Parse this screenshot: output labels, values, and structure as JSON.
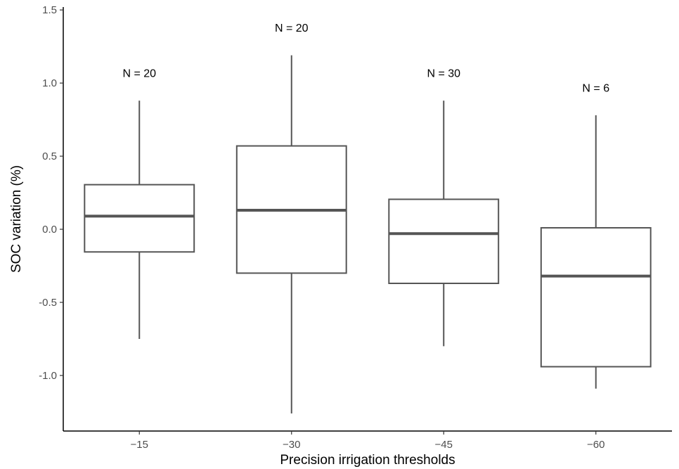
{
  "chart_data": {
    "type": "boxplot",
    "xlabel": "Precision irrigation thresholds",
    "ylabel": "SOC variation (%)",
    "ylim": [
      -1.38,
      1.52
    ],
    "yticks": [
      -1.0,
      -0.5,
      0.0,
      0.5,
      1.0,
      1.5
    ],
    "ytick_labels": [
      "-1.0",
      "-0.5",
      "0.0",
      "0.5",
      "1.0",
      "1.5"
    ],
    "categories": [
      "−15",
      "−30",
      "−45",
      "−60"
    ],
    "grid": false,
    "boxes": [
      {
        "category": "−15",
        "whisker_low": -0.75,
        "q1": -0.155,
        "median": 0.09,
        "q3": 0.305,
        "whisker_high": 0.88,
        "n_label": "N = 20",
        "n_label_y": 1.07
      },
      {
        "category": "−30",
        "whisker_low": -1.26,
        "q1": -0.3,
        "median": 0.13,
        "q3": 0.57,
        "whisker_high": 1.19,
        "n_label": "N = 20",
        "n_label_y": 1.38
      },
      {
        "category": "−45",
        "whisker_low": -0.8,
        "q1": -0.37,
        "median": -0.03,
        "q3": 0.205,
        "whisker_high": 0.88,
        "n_label": "N = 30",
        "n_label_y": 1.07
      },
      {
        "category": "−60",
        "whisker_low": -1.09,
        "q1": -0.94,
        "median": -0.32,
        "q3": 0.01,
        "whisker_high": 0.78,
        "n_label": "N = 6",
        "n_label_y": 0.97
      }
    ],
    "colors": {
      "box_line": "#555555",
      "median_line": "#555555",
      "box_fill": "#ffffff",
      "axis": "#000000",
      "tick_text": "#4d4d4d"
    }
  }
}
